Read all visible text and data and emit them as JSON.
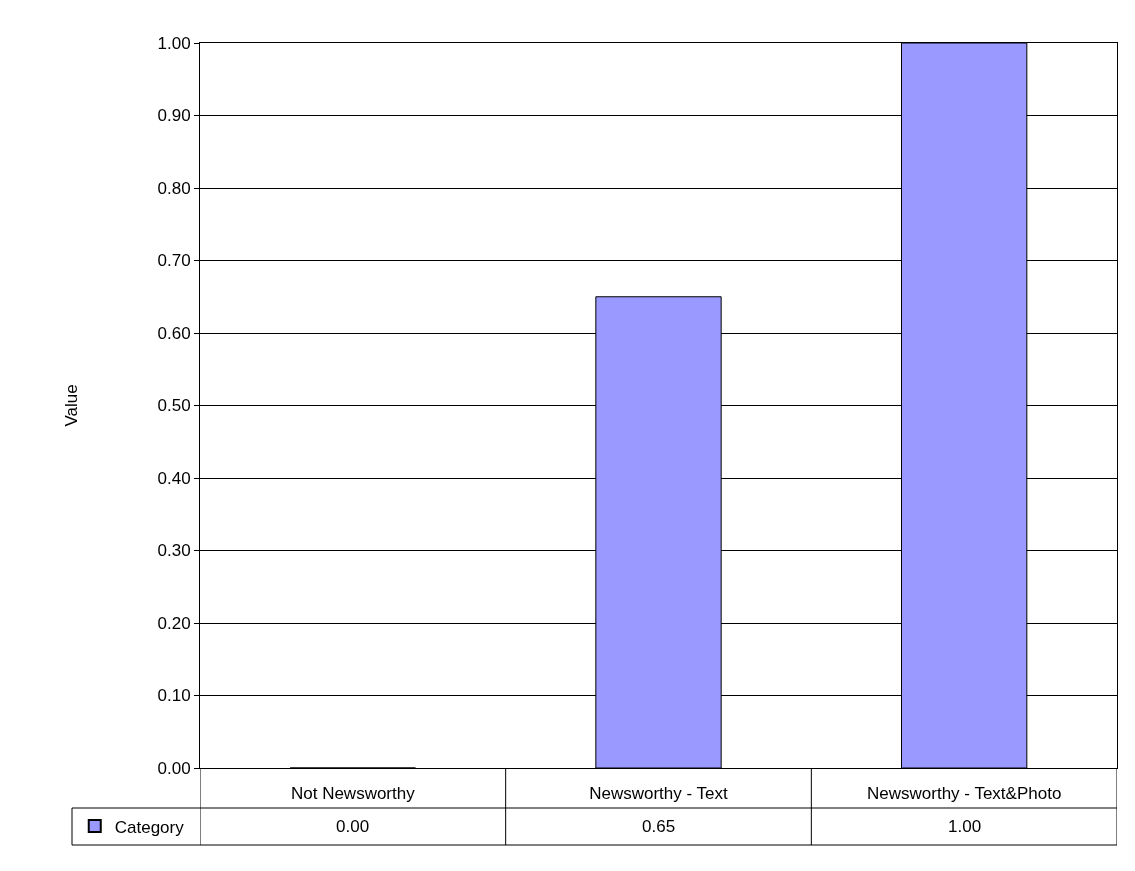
{
  "chart_data": {
    "type": "bar",
    "ylabel": "Value",
    "categories": [
      "Not Newsworthy",
      "Newsworthy - Text",
      "Newsworthy - Text&Photo"
    ],
    "series": [
      {
        "name": "Category",
        "color": "#9999ff",
        "values": [
          0,
          0.65,
          1.0
        ],
        "value_labels": [
          "0.00",
          "0.65",
          "1.00"
        ]
      }
    ],
    "ylim": [
      0,
      1
    ],
    "yticks": [
      {
        "value": 0,
        "label": "0.00"
      },
      {
        "value": 0.1,
        "label": "0.10"
      },
      {
        "value": 0.2,
        "label": "0.20"
      },
      {
        "value": 0.3,
        "label": "0.30"
      },
      {
        "value": 0.4,
        "label": "0.40"
      },
      {
        "value": 0.5,
        "label": "0.50"
      },
      {
        "value": 0.6,
        "label": "0.60"
      },
      {
        "value": 0.7,
        "label": "0.70"
      },
      {
        "value": 0.8,
        "label": "0.80"
      },
      {
        "value": 0.9,
        "label": "0.90"
      },
      {
        "value": 1,
        "label": "1.00"
      }
    ],
    "grid": "y",
    "legend": "bottom left"
  }
}
